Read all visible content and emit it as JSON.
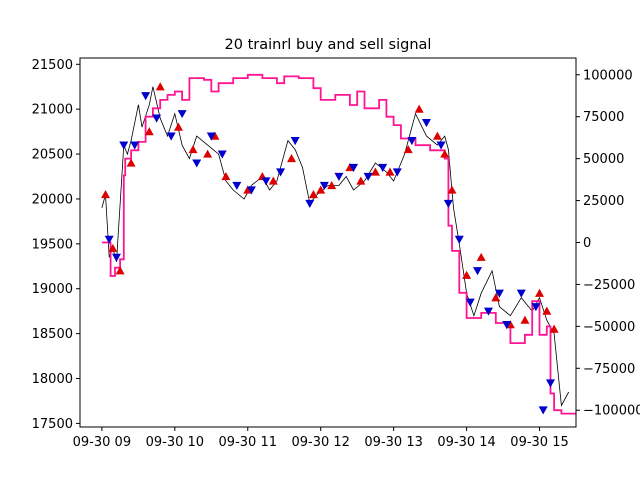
{
  "chart_data": {
    "type": "line",
    "title": "20 trainrl buy and sell signal",
    "x_tick_labels": [
      "09-30 09",
      "09-30 10",
      "09-30 11",
      "09-30 12",
      "09-30 13",
      "09-30 14",
      "09-30 15"
    ],
    "x_ticks": [
      9,
      10,
      11,
      12,
      13,
      14,
      15
    ],
    "xlim": [
      8.7,
      15.5
    ],
    "ylim_left": [
      17460,
      21570
    ],
    "yticks_left": [
      17500,
      18000,
      18500,
      19000,
      19500,
      20000,
      20500,
      21000,
      21500
    ],
    "ylim_right": [
      -110000,
      110000
    ],
    "yticks_right": [
      -100000,
      -75000,
      -50000,
      -25000,
      0,
      25000,
      50000,
      75000,
      100000
    ],
    "grid": false,
    "colors": {
      "price": "#000000",
      "equity": "#ff1493",
      "buy": "#dd0000",
      "sell": "#0000cc"
    },
    "price_series": {
      "axis": "left",
      "x": [
        9.0,
        9.05,
        9.1,
        9.15,
        9.2,
        9.3,
        9.35,
        9.4,
        9.5,
        9.55,
        9.65,
        9.7,
        9.8,
        9.9,
        10.0,
        10.1,
        10.2,
        10.3,
        10.45,
        10.6,
        10.7,
        10.8,
        10.95,
        11.05,
        11.2,
        11.3,
        11.4,
        11.55,
        11.65,
        11.75,
        11.85,
        11.95,
        12.1,
        12.25,
        12.35,
        12.45,
        12.6,
        12.75,
        12.9,
        13.0,
        13.15,
        13.3,
        13.45,
        13.6,
        13.7,
        13.75,
        13.82,
        13.9,
        14.0,
        14.1,
        14.2,
        14.35,
        14.45,
        14.6,
        14.75,
        14.9,
        15.0,
        15.1,
        15.2,
        15.3,
        15.4
      ],
      "y": [
        19900,
        20050,
        19350,
        19450,
        19300,
        20600,
        20500,
        20650,
        21050,
        20800,
        21050,
        21250,
        20900,
        20700,
        20950,
        20600,
        20450,
        20700,
        20600,
        20500,
        20200,
        20100,
        20000,
        20150,
        20250,
        20100,
        20200,
        20650,
        20550,
        20350,
        19950,
        20050,
        20150,
        20150,
        20250,
        20100,
        20200,
        20400,
        20300,
        20200,
        20500,
        20950,
        20700,
        20600,
        20700,
        20550,
        19900,
        19500,
        18950,
        18700,
        18950,
        19200,
        18800,
        18700,
        18900,
        18750,
        18900,
        18650,
        18500,
        17700,
        17850
      ]
    },
    "equity_series": {
      "axis": "right",
      "x": [
        9.0,
        9.1,
        9.12,
        9.18,
        9.25,
        9.3,
        9.32,
        9.4,
        9.5,
        9.6,
        9.7,
        9.8,
        9.9,
        10.0,
        10.1,
        10.2,
        10.4,
        10.5,
        10.6,
        10.8,
        11.0,
        11.2,
        11.4,
        11.5,
        11.7,
        11.9,
        12.0,
        12.2,
        12.4,
        12.5,
        12.6,
        12.8,
        12.9,
        13.0,
        13.1,
        13.3,
        13.5,
        13.7,
        13.75,
        13.8,
        13.9,
        14.0,
        14.2,
        14.4,
        14.6,
        14.8,
        14.9,
        15.0,
        15.1,
        15.15,
        15.2,
        15.3,
        15.5
      ],
      "y": [
        0,
        0,
        -20000,
        -15000,
        -10000,
        40000,
        50000,
        55000,
        60000,
        75000,
        80000,
        85000,
        88000,
        90000,
        85000,
        98000,
        97000,
        90000,
        95000,
        98000,
        100000,
        98000,
        95000,
        99000,
        98000,
        92000,
        85000,
        88000,
        82000,
        90000,
        80000,
        85000,
        75000,
        70000,
        62000,
        58000,
        55000,
        50000,
        10000,
        -5000,
        -30000,
        -45000,
        -42000,
        -48000,
        -60000,
        -55000,
        -35000,
        -55000,
        -50000,
        -90000,
        -100000,
        -102000,
        -102000
      ]
    },
    "buy_signals": {
      "axis": "left",
      "x": [
        9.05,
        9.15,
        9.25,
        9.4,
        9.65,
        9.8,
        10.05,
        10.25,
        10.45,
        10.55,
        10.7,
        11.0,
        11.2,
        11.35,
        11.6,
        11.9,
        12.0,
        12.15,
        12.4,
        12.55,
        12.75,
        12.95,
        13.2,
        13.35,
        13.6,
        13.7,
        13.8,
        14.0,
        14.2,
        14.4,
        14.6,
        14.8,
        15.0,
        15.1,
        15.2
      ],
      "y": [
        20050,
        19450,
        19200,
        20400,
        20750,
        21250,
        20800,
        20550,
        20500,
        20700,
        20250,
        20100,
        20250,
        20200,
        20450,
        20050,
        20100,
        20150,
        20350,
        20200,
        20300,
        20300,
        20550,
        21000,
        20700,
        20500,
        20100,
        19150,
        19350,
        18900,
        18600,
        18650,
        18950,
        18750,
        18550
      ]
    },
    "sell_signals": {
      "axis": "left",
      "x": [
        9.1,
        9.2,
        9.3,
        9.45,
        9.6,
        9.75,
        9.95,
        10.1,
        10.3,
        10.5,
        10.65,
        10.85,
        11.05,
        11.25,
        11.45,
        11.65,
        11.85,
        12.05,
        12.25,
        12.45,
        12.65,
        12.85,
        13.05,
        13.25,
        13.45,
        13.65,
        13.75,
        13.9,
        14.05,
        14.15,
        14.3,
        14.45,
        14.55,
        14.75,
        14.95,
        15.05,
        15.15
      ],
      "y": [
        19550,
        19350,
        20600,
        20600,
        21150,
        20900,
        20700,
        20950,
        20400,
        20700,
        20500,
        20150,
        20100,
        20200,
        20300,
        20650,
        19950,
        20150,
        20250,
        20350,
        20250,
        20350,
        20300,
        20650,
        20850,
        20600,
        19950,
        19550,
        18850,
        19200,
        18750,
        18950,
        18600,
        18950,
        18800,
        17650,
        17950
      ]
    }
  }
}
